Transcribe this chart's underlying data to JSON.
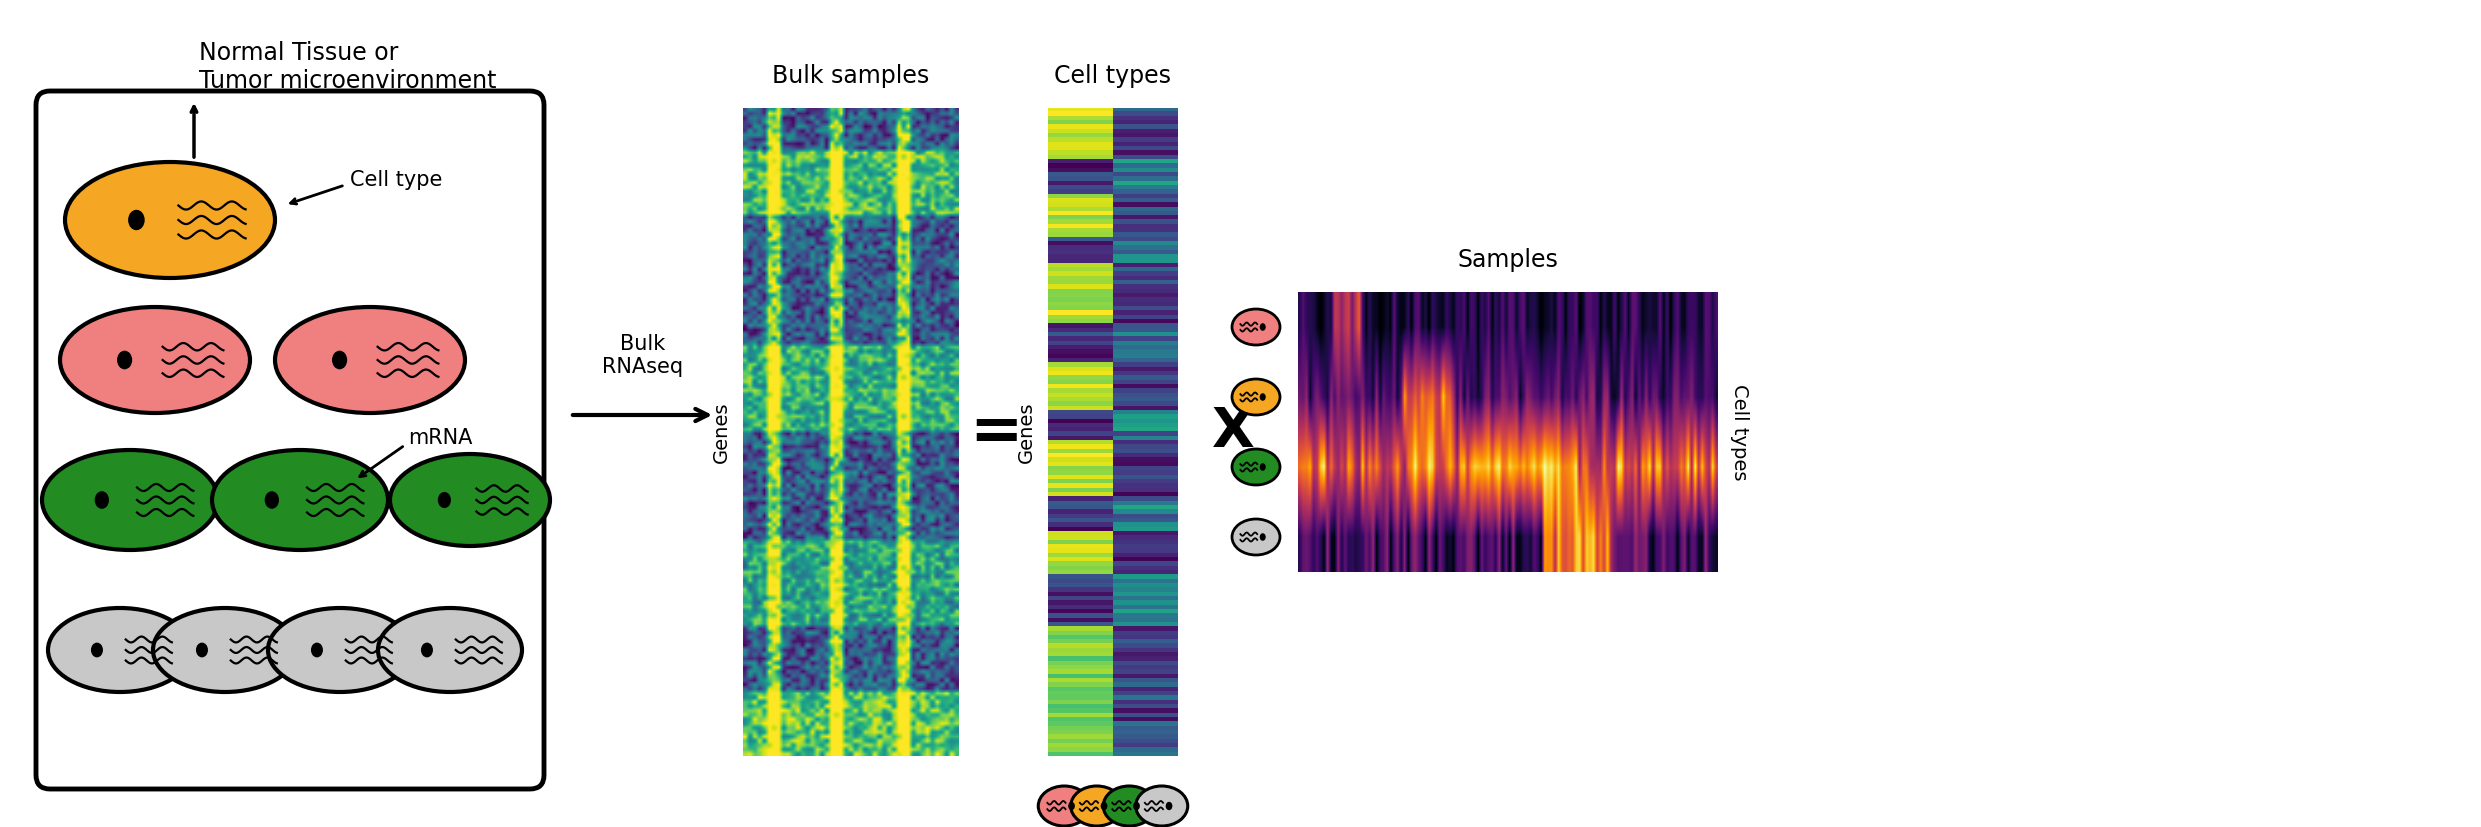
{
  "bg_color": "#ffffff",
  "title_text": "Normal Tissue or\nTumor microenvironment",
  "bulk_rnaseq_label": "Bulk\nRNAseq",
  "bulk_samples_title": "Bulk samples",
  "cell_types_title": "Cell types",
  "samples_title": "Samples",
  "genes_label": "Genes",
  "cell_types_label": "Cell types",
  "mrna_label": "mRNA",
  "cell_type_label": "Cell type",
  "equals_sign": "=",
  "times_sign": "X",
  "cell_colors": {
    "orange": "#F5A623",
    "pink": "#F08080",
    "green": "#228B22",
    "gray": "#C8C8C8"
  },
  "box_facecolor": "#ffffff",
  "box_edgecolor": "#000000"
}
